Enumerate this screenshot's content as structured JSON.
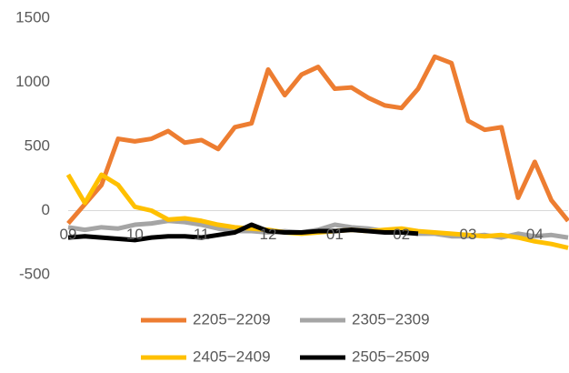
{
  "chart_data": {
    "type": "line",
    "categories": [
      "09",
      null,
      null,
      null,
      "10",
      null,
      null,
      null,
      "11",
      null,
      null,
      null,
      "12",
      null,
      null,
      null,
      "01",
      null,
      null,
      null,
      "02",
      null,
      null,
      null,
      "03",
      null,
      null,
      null,
      "04",
      null,
      null
    ],
    "series": [
      {
        "name": "2205−2209",
        "color": "#ED7D31",
        "values": [
          -100,
          50,
          200,
          560,
          540,
          560,
          620,
          530,
          550,
          480,
          650,
          680,
          1100,
          900,
          1060,
          1120,
          950,
          960,
          880,
          820,
          800,
          950,
          1200,
          1150,
          700,
          630,
          650,
          100,
          380,
          80,
          -80
        ]
      },
      {
        "name": "2305−2309",
        "color": "#A5A5A5",
        "values": [
          -130,
          -150,
          -130,
          -140,
          -110,
          -100,
          -80,
          -90,
          -110,
          -140,
          -160,
          -160,
          -170,
          -160,
          -170,
          -150,
          -110,
          -130,
          -140,
          -160,
          -150,
          -180,
          -180,
          -200,
          -200,
          -190,
          -210,
          -180,
          -200,
          -190,
          -210
        ]
      },
      {
        "name": "2405−2409",
        "color": "#FFC000",
        "values": [
          280,
          60,
          280,
          200,
          30,
          0,
          -70,
          -60,
          -80,
          -110,
          -130,
          -140,
          -150,
          -170,
          -180,
          -170,
          -160,
          -150,
          -160,
          -150,
          -140,
          -160,
          -170,
          -180,
          -190,
          -200,
          -190,
          -210,
          -240,
          -260,
          -290
        ]
      },
      {
        "name": "2505−2509",
        "color": "#000000",
        "values": [
          -210,
          -200,
          -210,
          -220,
          -230,
          -210,
          -200,
          -200,
          -210,
          -190,
          -170,
          -110,
          -160,
          -170,
          -170,
          -160,
          -160,
          -150,
          -160,
          -170,
          -170,
          -180,
          null,
          null,
          null,
          null,
          null,
          null,
          null,
          null,
          null
        ]
      }
    ],
    "ylim": [
      -500,
      1500
    ],
    "yticks": [
      -500,
      0,
      500,
      1000,
      1500
    ]
  }
}
